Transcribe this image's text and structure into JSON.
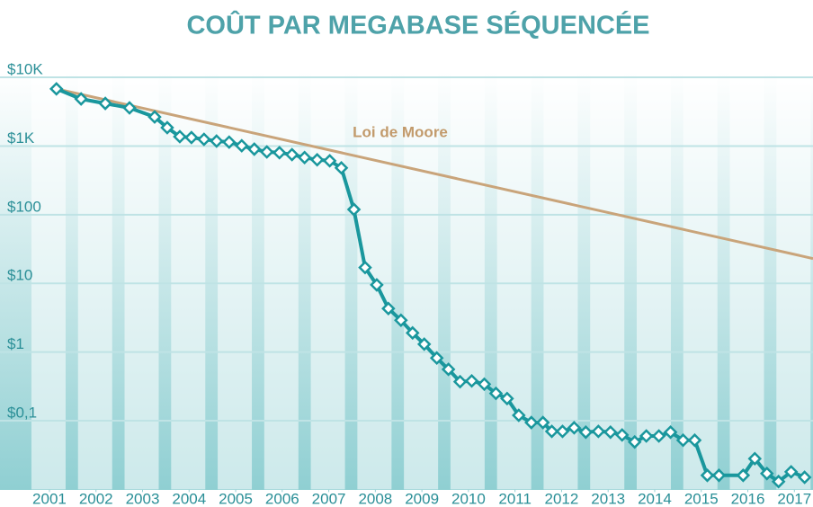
{
  "chart_data": {
    "type": "line",
    "title": "COÛT PAR MEGABASE SÉQUENCÉE",
    "log_scale": true,
    "grid": true,
    "xlim": [
      2000,
      2017.4
    ],
    "xticks": [
      2001,
      2002,
      2003,
      2004,
      2005,
      2006,
      2007,
      2008,
      2009,
      2010,
      2011,
      2012,
      2013,
      2014,
      2015,
      2016,
      2017
    ],
    "ylim": [
      0.01,
      12000
    ],
    "yticks": [
      {
        "value": 10000,
        "label": "$10K"
      },
      {
        "value": 1000,
        "label": "$1K"
      },
      {
        "value": 100,
        "label": "$100"
      },
      {
        "value": 10,
        "label": "$10"
      },
      {
        "value": 1,
        "label": "$1"
      },
      {
        "value": 0.1,
        "label": "$0,1"
      }
    ],
    "series": [
      {
        "color": "#1a979d",
        "x": [
          2001.15,
          2001.68,
          2002.2,
          2002.72,
          2003.26,
          2003.53,
          2003.8,
          2004.05,
          2004.32,
          2004.59,
          2004.86,
          2005.13,
          2005.4,
          2005.67,
          2005.94,
          2006.21,
          2006.48,
          2006.75,
          2007.02,
          2007.27,
          2007.54,
          2007.78,
          2008.03,
          2008.28,
          2008.55,
          2008.8,
          2009.05,
          2009.32,
          2009.57,
          2009.82,
          2010.07,
          2010.34,
          2010.59,
          2010.83,
          2011.08,
          2011.35,
          2011.6,
          2011.79,
          2012.02,
          2012.27,
          2012.52,
          2012.79,
          2013.05,
          2013.3,
          2013.57,
          2013.82,
          2014.09,
          2014.34,
          2014.61,
          2014.86,
          2015.13,
          2015.38,
          2015.9,
          2016.15,
          2016.41,
          2016.66,
          2016.93,
          2017.22
        ],
        "values": [
          6800,
          4850,
          4170,
          3590,
          2650,
          1850,
          1370,
          1330,
          1250,
          1180,
          1140,
          1010,
          900,
          820,
          800,
          750,
          680,
          630,
          610,
          480,
          119,
          17,
          9.5,
          4.3,
          2.9,
          1.9,
          1.3,
          0.82,
          0.56,
          0.37,
          0.38,
          0.34,
          0.25,
          0.21,
          0.12,
          0.094,
          0.094,
          0.07,
          0.07,
          0.079,
          0.068,
          0.07,
          0.068,
          0.062,
          0.049,
          0.06,
          0.06,
          0.068,
          0.052,
          0.052,
          0.016,
          0.016,
          0.016,
          0.028,
          0.017,
          0.013,
          0.018,
          0.015
        ]
      },
      {
        "name": "Loi de Moore",
        "color": "#c9a47a",
        "x": [
          2001.15,
          2017.4
        ],
        "values": [
          6800,
          23
        ]
      }
    ]
  }
}
